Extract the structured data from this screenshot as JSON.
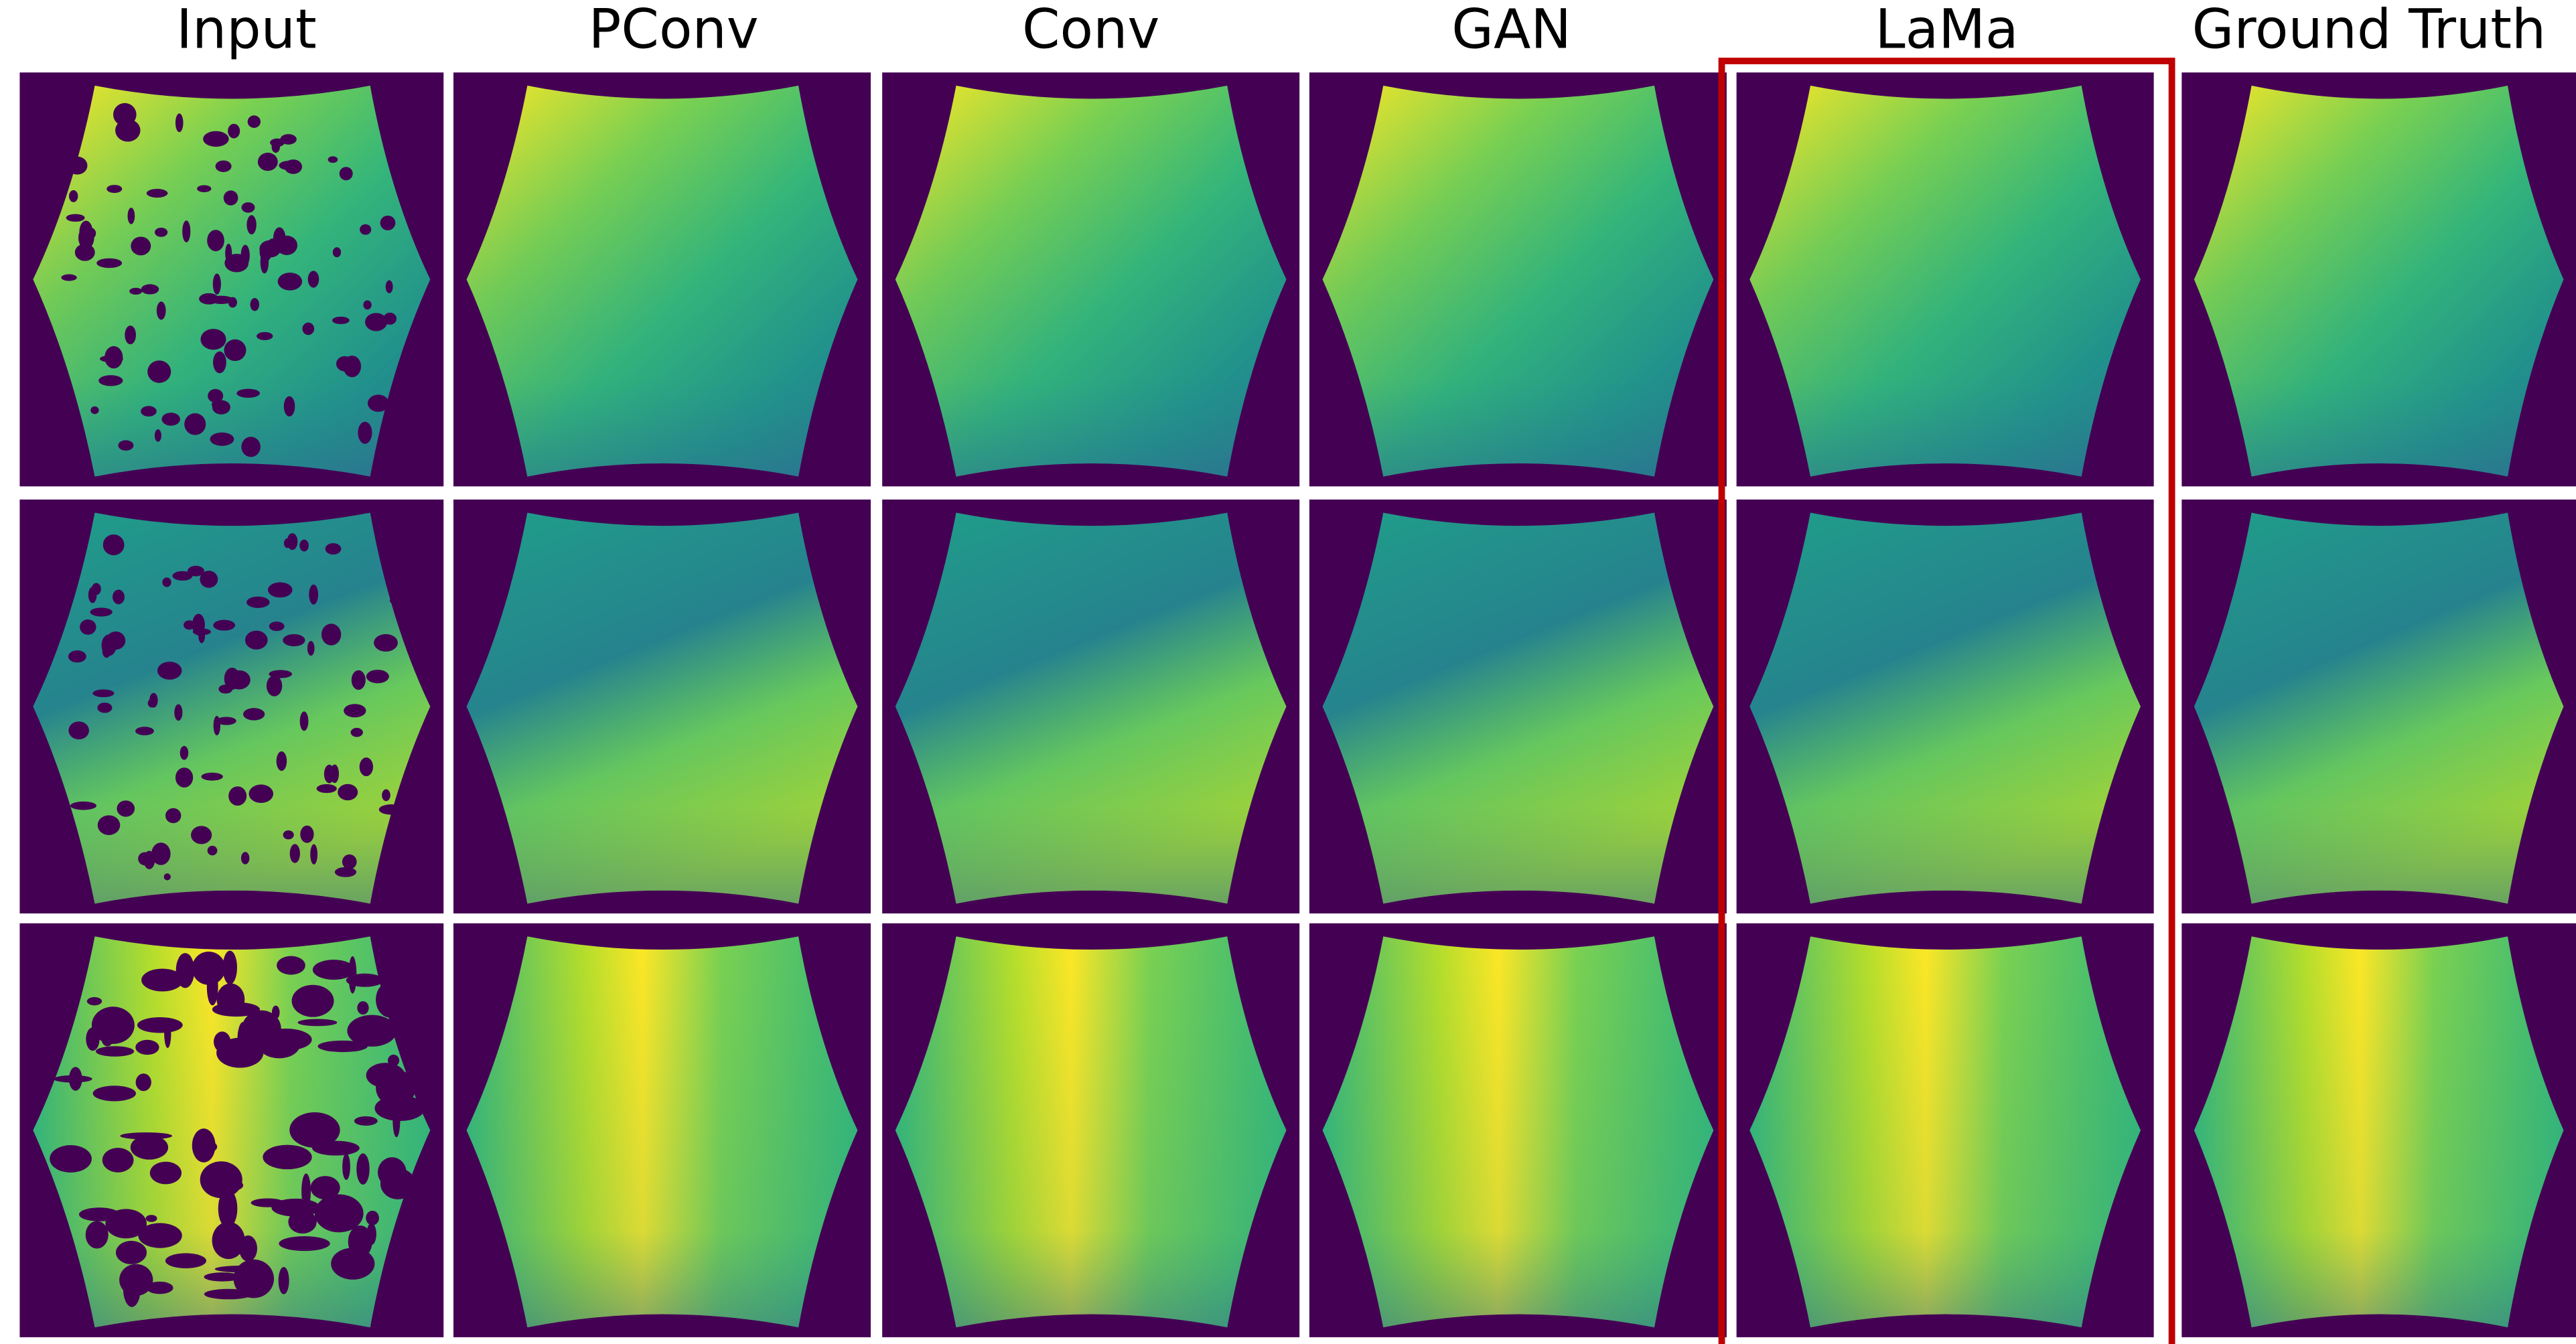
{
  "headers": [
    "Input",
    "PConv",
    "Conv",
    "GAN",
    "LaMa",
    "Ground Truth"
  ]
}
